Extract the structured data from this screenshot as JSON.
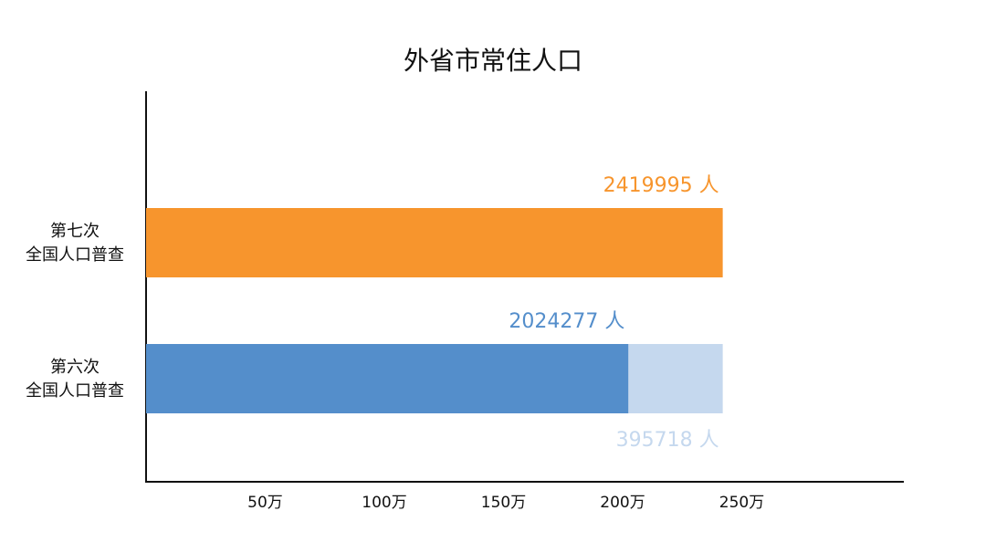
{
  "chart_data": {
    "type": "bar",
    "orientation": "horizontal",
    "title": "外省市常住人口",
    "categories": [
      [
        "第七次",
        "全国人口普查"
      ],
      [
        "第六次",
        "全国人口普查"
      ]
    ],
    "series": [
      {
        "colors": [
          "#f7952d",
          "#548ecb"
        ],
        "values": [
          2419995,
          2024277
        ],
        "value_labels": [
          "2419995 人",
          "2024277 人"
        ]
      },
      {
        "colors": [
          null,
          "#c5d8ee"
        ],
        "values": [
          null,
          395718
        ],
        "value_labels": [
          null,
          "395718 人"
        ]
      }
    ],
    "stacked": true,
    "xlim": [
      0,
      3180000
    ],
    "xticks": [
      {
        "value": 500000,
        "label": "50万"
      },
      {
        "value": 1000000,
        "label": "100万"
      },
      {
        "value": 1500000,
        "label": "150万"
      },
      {
        "value": 2000000,
        "label": "200万"
      },
      {
        "value": 2500000,
        "label": "250万"
      }
    ],
    "grid": false
  }
}
